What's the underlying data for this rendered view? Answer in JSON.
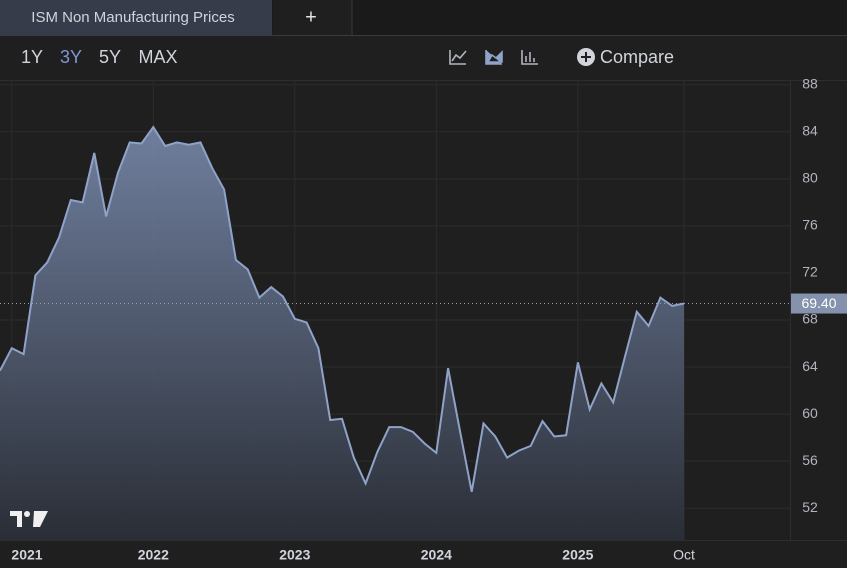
{
  "tabs": {
    "active": "ISM Non Manufacturing Prices",
    "add": "+"
  },
  "toolbar": {
    "ranges": [
      "1Y",
      "3Y",
      "5Y",
      "MAX"
    ],
    "active_range": "3Y",
    "compare": "Compare"
  },
  "chart_data": {
    "type": "area",
    "categories": [
      null,
      "2021",
      null,
      null,
      null,
      null,
      null,
      null,
      null,
      null,
      null,
      null,
      null,
      "2022",
      null,
      null,
      null,
      null,
      null,
      null,
      null,
      null,
      null,
      null,
      null,
      "2023",
      null,
      null,
      null,
      null,
      null,
      null,
      null,
      null,
      null,
      null,
      null,
      "2024",
      null,
      null,
      null,
      null,
      null,
      null,
      null,
      null,
      null,
      null,
      null,
      "2025",
      null,
      null,
      null,
      null,
      null,
      null,
      null,
      null,
      "Oct"
    ],
    "series": [
      {
        "color": "#8fa3c9",
        "values": [
          63.7,
          65.6,
          65.1,
          71.8,
          72.9,
          75.0,
          78.2,
          78.0,
          82.2,
          76.8,
          80.5,
          83.1,
          83.0,
          84.4,
          82.8,
          83.1,
          82.9,
          83.1,
          80.9,
          79.1,
          73.1,
          72.3,
          69.9,
          70.8,
          70.0,
          68.1,
          67.8,
          65.6,
          59.5,
          59.6,
          56.3,
          54.1,
          56.8,
          58.9,
          58.9,
          58.5,
          57.5,
          56.7,
          63.9,
          58.6,
          53.4,
          59.2,
          58.1,
          56.3,
          56.9,
          57.3,
          59.4,
          58.1,
          58.2,
          64.4,
          60.4,
          62.6,
          61.0,
          64.9,
          68.7,
          67.5,
          69.9,
          69.2,
          69.4
        ],
        "value_labels": [
          null,
          null,
          null,
          null,
          null,
          null,
          null,
          null,
          null,
          null,
          null,
          null,
          null,
          null,
          null,
          null,
          null,
          null,
          null,
          null,
          null,
          null,
          null,
          null,
          null,
          null,
          null,
          null,
          null,
          null,
          null,
          null,
          null,
          null,
          null,
          null,
          null,
          null,
          null,
          null,
          null,
          null,
          null,
          null,
          null,
          null,
          null,
          null,
          null,
          null,
          null,
          null,
          null,
          null,
          null,
          null,
          null,
          null,
          "69.40"
        ]
      }
    ],
    "ylim": [
      49.3,
      88.4
    ],
    "yticks": [
      52,
      56,
      60,
      64,
      68,
      72,
      76,
      80,
      84,
      88
    ],
    "grid": true
  }
}
